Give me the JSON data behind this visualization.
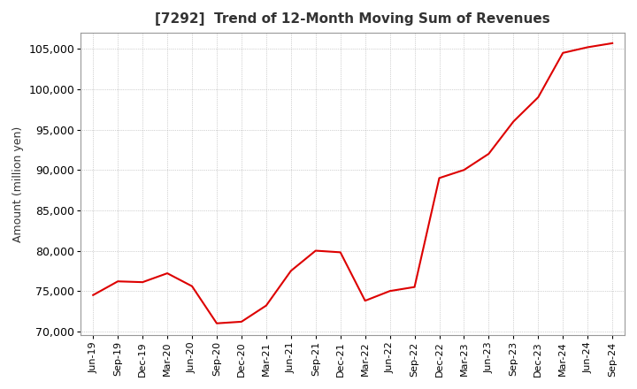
{
  "title": "[7292]  Trend of 12-Month Moving Sum of Revenues",
  "ylabel": "Amount (million yen)",
  "ylim": [
    69500,
    107000
  ],
  "yticks": [
    70000,
    75000,
    80000,
    85000,
    90000,
    95000,
    100000,
    105000
  ],
  "line_color": "#dd0000",
  "bg_color": "#ffffff",
  "plot_bg_color": "#ffffff",
  "grid_color": "#aaaaaa",
  "title_fontsize": 11,
  "title_fontweight": "bold",
  "x_labels": [
    "Jun-19",
    "Sep-19",
    "Dec-19",
    "Mar-20",
    "Jun-20",
    "Sep-20",
    "Dec-20",
    "Mar-21",
    "Jun-21",
    "Sep-21",
    "Dec-21",
    "Mar-22",
    "Jun-22",
    "Sep-22",
    "Dec-22",
    "Mar-23",
    "Jun-23",
    "Sep-23",
    "Dec-23",
    "Mar-24",
    "Jun-24",
    "Sep-24"
  ],
  "values": [
    74500,
    76200,
    76100,
    77200,
    75600,
    71000,
    71200,
    73200,
    77500,
    80000,
    79800,
    73800,
    75000,
    75500,
    89000,
    90000,
    92000,
    96000,
    99000,
    104500,
    105200,
    105700
  ]
}
